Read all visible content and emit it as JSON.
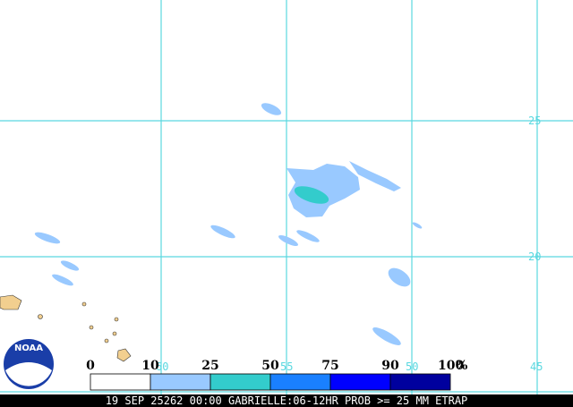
{
  "map": {
    "lat_labels": [
      "25",
      "20"
    ],
    "lon_labels": [
      "60",
      "55",
      "50",
      "45"
    ]
  },
  "legend": {
    "labels": [
      "0",
      "10",
      "25",
      "50",
      "75",
      "90",
      "100"
    ],
    "unit": "%",
    "colors": [
      "#ffffff",
      "#99c9ff",
      "#33cccc",
      "#1a80ff",
      "#0000ff",
      "#00009e"
    ]
  },
  "logo": "NOAA",
  "footer": "19 SEP 25262 00:00 GABRIELLE:06-12HR PROB >= 25 MM ETRAP"
}
